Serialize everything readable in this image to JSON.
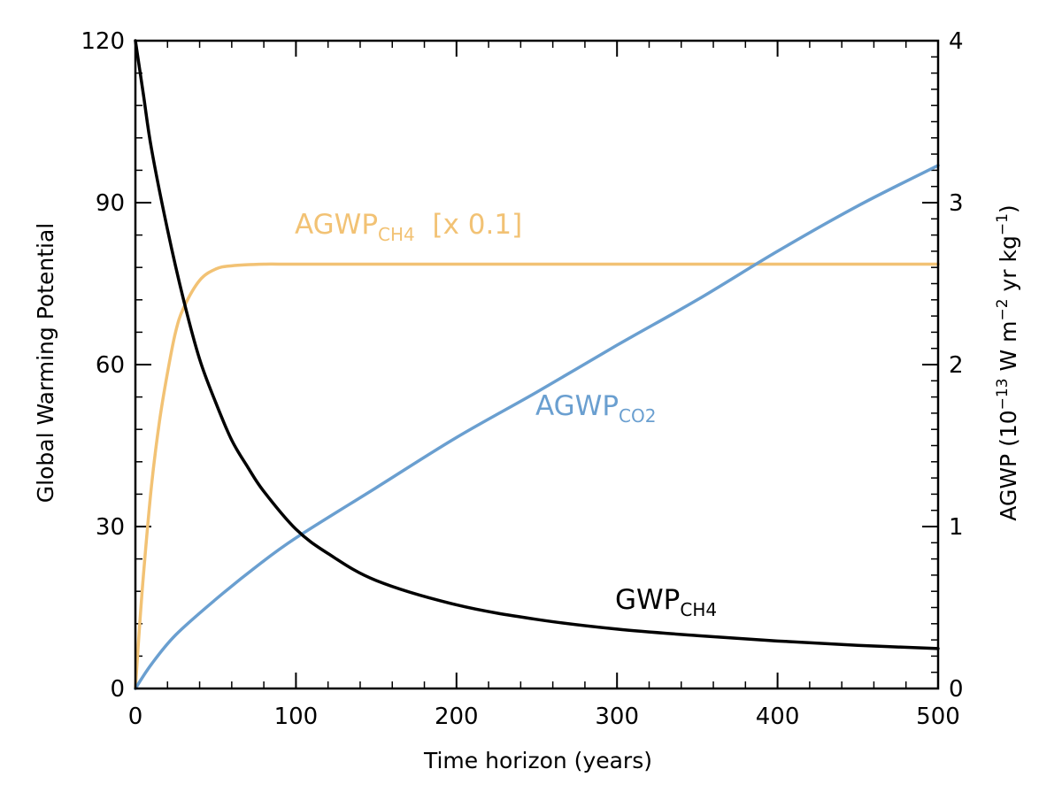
{
  "chart_data": {
    "type": "line",
    "xlabel": "Time horizon (years)",
    "ylabel_left": "Global Warming Potential",
    "ylabel_right": {
      "prefix": "AGWP  (10",
      "exp1": "−13",
      "mid": " W m",
      "exp2": "−2",
      "mid2": " yr kg",
      "exp3": "−1",
      "suffix": ")"
    },
    "xlim": [
      0,
      500
    ],
    "ylim_left": [
      0,
      120
    ],
    "ylim_right": [
      0,
      4
    ],
    "x_ticks": [
      0,
      100,
      200,
      300,
      400,
      500
    ],
    "x_tick_labels": [
      "0",
      "100",
      "200",
      "300",
      "400",
      "500"
    ],
    "y_left_ticks": [
      0,
      30,
      60,
      90,
      120
    ],
    "y_left_tick_labels": [
      "0",
      "30",
      "60",
      "90",
      "120"
    ],
    "y_right_ticks": [
      0,
      1,
      2,
      3,
      4
    ],
    "y_right_tick_labels": [
      "0",
      "1",
      "2",
      "3",
      "4"
    ],
    "grid": false,
    "series": [
      {
        "name": "GWP_CH4",
        "label_main": "GWP",
        "label_sub": "CH4",
        "axis": "left",
        "color": "#000000",
        "x": [
          0,
          5,
          10,
          20,
          30,
          40,
          50,
          60,
          70,
          80,
          100,
          120,
          150,
          200,
          250,
          300,
          350,
          400,
          450,
          500
        ],
        "y": [
          120,
          110,
          100,
          85,
          72,
          61,
          53,
          46,
          41,
          36.5,
          29.5,
          25,
          20,
          15.5,
          12.8,
          11,
          9.8,
          8.8,
          8,
          7.4
        ]
      },
      {
        "name": "AGWP_CO2",
        "label_main": "AGWP",
        "label_sub": "CO2",
        "axis": "right",
        "color": "#6a9fd0",
        "x": [
          0,
          10,
          25,
          50,
          75,
          100,
          150,
          200,
          250,
          300,
          350,
          400,
          450,
          500
        ],
        "y": [
          0,
          0.15,
          0.33,
          0.55,
          0.75,
          0.93,
          1.24,
          1.55,
          1.83,
          2.12,
          2.4,
          2.7,
          2.98,
          3.23
        ]
      },
      {
        "name": "AGWP_CH4 [x 0.1]",
        "label_main": "AGWP",
        "label_sub": "CH4",
        "label_tail": "  [x 0.1]",
        "axis": "right",
        "color": "#f2c274",
        "x": [
          0,
          2,
          5,
          10,
          15,
          20,
          25,
          30,
          40,
          50,
          60,
          80,
          100,
          200,
          300,
          400,
          500
        ],
        "y": [
          0,
          0.3,
          0.7,
          1.25,
          1.65,
          1.95,
          2.2,
          2.35,
          2.52,
          2.59,
          2.61,
          2.62,
          2.62,
          2.62,
          2.62,
          2.62,
          2.62
        ]
      }
    ]
  }
}
